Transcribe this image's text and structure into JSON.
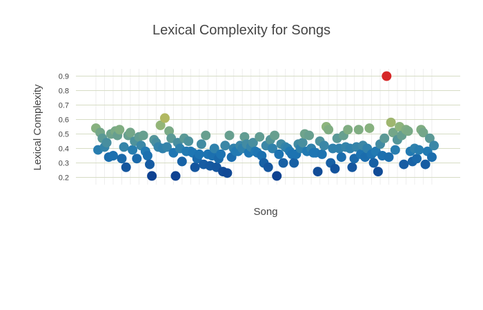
{
  "chart_data": {
    "type": "scatter",
    "title": "Lexical Complexity for Songs",
    "xlabel": "Song",
    "ylabel": "Lexical Complexity",
    "yticks": [
      0.2,
      0.3,
      0.4,
      0.5,
      0.6,
      0.7,
      0.8,
      0.9
    ],
    "ylim": [
      0.15,
      0.95
    ],
    "grid": true,
    "x_tick_labels_shown": false,
    "colorscale": [
      "#0d3f8f",
      "#1f78b4",
      "#8db47c",
      "#f5c12e",
      "#d62728"
    ],
    "color_range": [
      0.2,
      0.9
    ],
    "y": [
      0.54,
      0.39,
      0.51,
      0.47,
      0.41,
      0.44,
      0.34,
      0.5,
      0.35,
      0.52,
      0.49,
      0.53,
      0.33,
      0.41,
      0.27,
      0.49,
      0.51,
      0.39,
      0.45,
      0.33,
      0.48,
      0.42,
      0.49,
      0.38,
      0.35,
      0.29,
      0.21,
      0.46,
      0.44,
      0.41,
      0.56,
      0.4,
      0.61,
      0.41,
      0.52,
      0.47,
      0.37,
      0.21,
      0.44,
      0.4,
      0.31,
      0.47,
      0.38,
      0.45,
      0.38,
      0.37,
      0.27,
      0.33,
      0.36,
      0.43,
      0.29,
      0.49,
      0.36,
      0.28,
      0.35,
      0.4,
      0.27,
      0.33,
      0.36,
      0.24,
      0.42,
      0.23,
      0.49,
      0.34,
      0.4,
      0.38,
      0.38,
      0.42,
      0.4,
      0.48,
      0.43,
      0.37,
      0.41,
      0.44,
      0.38,
      0.37,
      0.48,
      0.35,
      0.3,
      0.42,
      0.27,
      0.46,
      0.4,
      0.49,
      0.21,
      0.36,
      0.43,
      0.3,
      0.41,
      0.4,
      0.38,
      0.36,
      0.3,
      0.36,
      0.43,
      0.4,
      0.44,
      0.5,
      0.38,
      0.49,
      0.4,
      0.37,
      0.37,
      0.24,
      0.45,
      0.36,
      0.42,
      0.55,
      0.53,
      0.3,
      0.4,
      0.26,
      0.47,
      0.4,
      0.34,
      0.49,
      0.41,
      0.53,
      0.4,
      0.27,
      0.33,
      0.41,
      0.53,
      0.36,
      0.42,
      0.34,
      0.4,
      0.54,
      0.36,
      0.3,
      0.38,
      0.24,
      0.43,
      0.35,
      0.47,
      0.9,
      0.34,
      0.58,
      0.51,
      0.39,
      0.46,
      0.55,
      0.49,
      0.29,
      0.53,
      0.52,
      0.38,
      0.31,
      0.4,
      0.33,
      0.39,
      0.53,
      0.51,
      0.29,
      0.38,
      0.47,
      0.34,
      0.42
    ]
  }
}
